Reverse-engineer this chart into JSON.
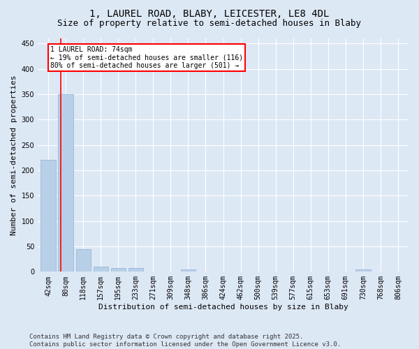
{
  "title_line1": "1, LAUREL ROAD, BLABY, LEICESTER, LE8 4DL",
  "title_line2": "Size of property relative to semi-detached houses in Blaby",
  "xlabel": "Distribution of semi-detached houses by size in Blaby",
  "ylabel": "Number of semi-detached properties",
  "categories": [
    "42sqm",
    "80sqm",
    "118sqm",
    "157sqm",
    "195sqm",
    "233sqm",
    "271sqm",
    "309sqm",
    "348sqm",
    "386sqm",
    "424sqm",
    "462sqm",
    "500sqm",
    "539sqm",
    "577sqm",
    "615sqm",
    "653sqm",
    "691sqm",
    "730sqm",
    "768sqm",
    "806sqm"
  ],
  "values": [
    220,
    350,
    45,
    10,
    8,
    8,
    0,
    0,
    4,
    0,
    0,
    0,
    0,
    0,
    0,
    0,
    0,
    0,
    4,
    0,
    0
  ],
  "bar_color": "#b8cfe8",
  "bar_edge_color": "#8fb0d4",
  "redline_color": "red",
  "redline_x": 0.72,
  "redline_label": "1 LAUREL ROAD: 74sqm",
  "annotation_line1": "← 19% of semi-detached houses are smaller (116)",
  "annotation_line2": "80% of semi-detached houses are larger (501) →",
  "annotation_box_facecolor": "white",
  "annotation_box_edgecolor": "red",
  "ylim": [
    0,
    460
  ],
  "yticks": [
    0,
    50,
    100,
    150,
    200,
    250,
    300,
    350,
    400,
    450
  ],
  "background_color": "#dde8f5",
  "grid_color": "white",
  "title_fontsize": 10,
  "subtitle_fontsize": 9,
  "axis_label_fontsize": 8,
  "tick_fontsize": 7,
  "annotation_fontsize": 7,
  "footer_fontsize": 6.5,
  "footer_line1": "Contains HM Land Registry data © Crown copyright and database right 2025.",
  "footer_line2": "Contains public sector information licensed under the Open Government Licence v3.0."
}
